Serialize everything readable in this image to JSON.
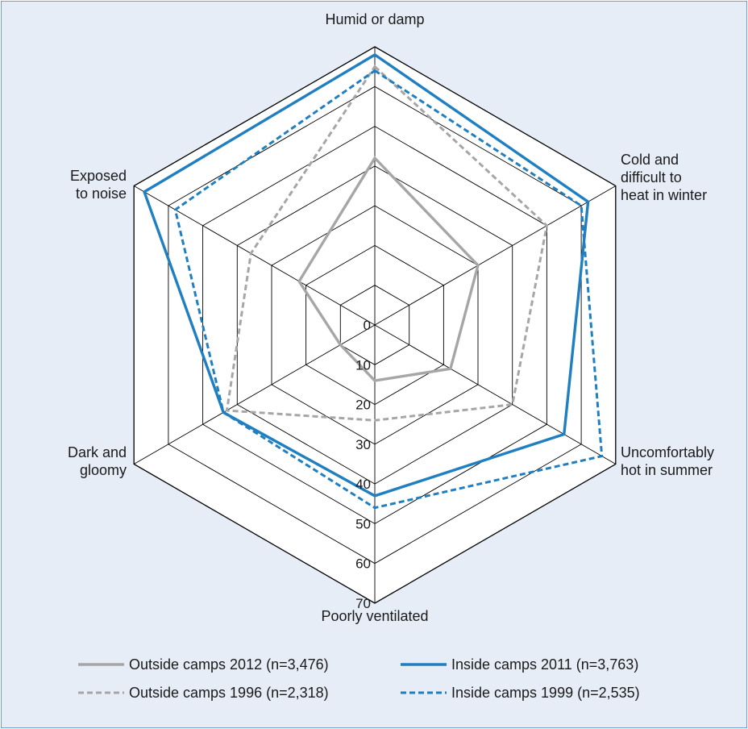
{
  "chart_data": {
    "type": "radar",
    "axes": [
      "Humid or damp",
      "Cold and difficult to heat in winter",
      "Uncomfortably hot in summer",
      "Poorly ventilated",
      "Dark and gloomy",
      "Exposed to noise"
    ],
    "axis_label_lines": [
      [
        "Humid or damp"
      ],
      [
        "Cold and",
        "difficult to",
        "heat in winter"
      ],
      [
        "Uncomfortably",
        "hot in summer"
      ],
      [
        "Poorly ventilated"
      ],
      [
        "Dark and",
        "gloomy"
      ],
      [
        "Exposed",
        "to noise"
      ]
    ],
    "ticks": [
      0,
      10,
      20,
      30,
      40,
      50,
      60,
      70
    ],
    "range": [
      0,
      70
    ],
    "series": [
      {
        "name": "Outside camps 2012 (n=3,476)",
        "values": [
          42,
          30,
          22,
          14,
          10,
          22
        ],
        "color": "#a6a6a6",
        "dash": "solid"
      },
      {
        "name": "Inside camps 2011 (n=3,763)",
        "values": [
          68,
          62,
          55,
          43,
          44,
          67
        ],
        "color": "#1f7fc1",
        "dash": "solid"
      },
      {
        "name": "Outside camps 1996 (n=2,318)",
        "values": [
          65,
          50,
          40,
          24,
          43,
          36
        ],
        "color": "#a6a6a6",
        "dash": "dashed"
      },
      {
        "name": "Inside camps 1999 (n=2,535)",
        "values": [
          64,
          60,
          66,
          46,
          44,
          58
        ],
        "color": "#1f7fc1",
        "dash": "dashed"
      }
    ]
  }
}
